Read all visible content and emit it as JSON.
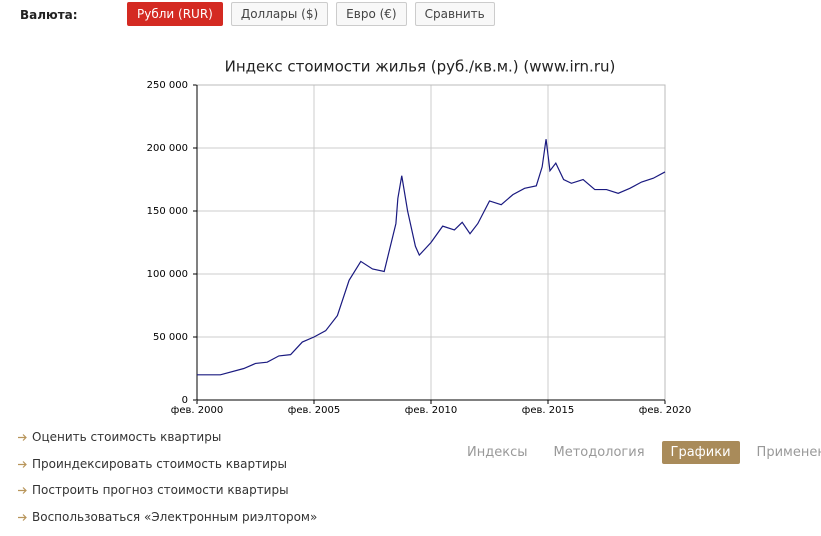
{
  "currency_label": "Валюта:",
  "currency_buttons": [
    "Рубли (RUR)",
    "Доллары ($)",
    "Евро (€)",
    "Сравнить"
  ],
  "active_button": 0,
  "chart_data": {
    "type": "line",
    "title": "Индекс стоимости жилья (руб./кв.м.) (www.irn.ru)",
    "x": [
      "2000-02",
      "2001-02",
      "2002-02",
      "2002-08",
      "2003-02",
      "2003-08",
      "2004-02",
      "2004-08",
      "2005-02",
      "2005-08",
      "2006-02",
      "2006-08",
      "2007-02",
      "2007-08",
      "2008-02",
      "2008-08",
      "2008-09",
      "2008-11",
      "2009-02",
      "2009-06",
      "2009-08",
      "2010-02",
      "2010-08",
      "2011-02",
      "2011-06",
      "2011-10",
      "2012-02",
      "2012-08",
      "2013-02",
      "2013-08",
      "2014-02",
      "2014-08",
      "2014-11",
      "2015-01",
      "2015-03",
      "2015-06",
      "2015-10",
      "2016-02",
      "2016-08",
      "2017-02",
      "2017-08",
      "2018-02",
      "2018-08",
      "2019-02",
      "2019-08",
      "2020-02"
    ],
    "values": [
      20000,
      20000,
      25000,
      29000,
      30000,
      35000,
      36000,
      46000,
      50000,
      55000,
      67000,
      95000,
      110000,
      104000,
      102000,
      140000,
      160000,
      178000,
      150000,
      122000,
      115000,
      125000,
      138000,
      135000,
      141000,
      132000,
      140000,
      158000,
      155000,
      163000,
      168000,
      170000,
      185000,
      207000,
      182000,
      188000,
      175000,
      172000,
      175000,
      167000,
      167000,
      164000,
      168000,
      173000,
      176000,
      181000
    ],
    "color": "#1a1a80",
    "xlim": [
      "2000-02",
      "2020-02"
    ],
    "xticks": [
      {
        "value": "2000-02",
        "label": "фев. 2000"
      },
      {
        "value": "2005-02",
        "label": "фев. 2005"
      },
      {
        "value": "2010-02",
        "label": "фев. 2010"
      },
      {
        "value": "2015-02",
        "label": "фев. 2015"
      },
      {
        "value": "2020-02",
        "label": "фев. 2020"
      }
    ],
    "ylim": [
      0,
      250000
    ],
    "yticks": [
      0,
      {
        "value": 50000,
        "label": "50 000"
      },
      {
        "value": 100000,
        "label": "100 000"
      },
      {
        "value": 150000,
        "label": "150 000"
      },
      {
        "value": 200000,
        "label": "200 000"
      },
      {
        "value": 250000,
        "label": "250 000"
      }
    ],
    "grid": true
  },
  "links": [
    "Оценить стоимость квартиры",
    "Проиндексировать стоимость квартиры",
    "Построить прогноз стоимости квартиры",
    "Воспользоваться «Электронным риэлтором»"
  ],
  "tabs": [
    "Индексы",
    "Методология",
    "Графики",
    "Применение"
  ],
  "active_tab": 2
}
